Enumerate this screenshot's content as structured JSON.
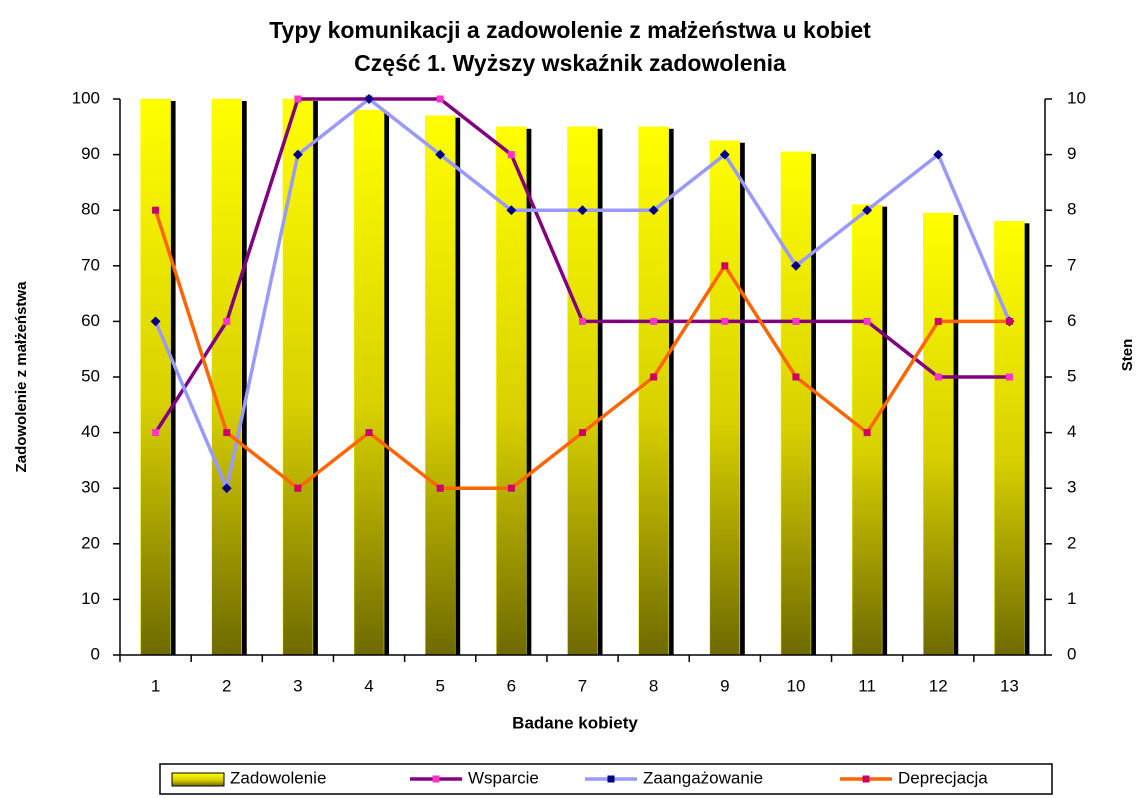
{
  "chart_data": {
    "type": "bar",
    "title": "Typy komunikacji a zadowolenie z małżeństwa u kobiet",
    "subtitle": "Część 1. Wyższy wskaźnik zadowolenia",
    "x_label": "Badane kobiety",
    "y_label": "Zadowolenie z małżeństwa",
    "y2_label": "Sten",
    "categories": [
      "1",
      "2",
      "3",
      "4",
      "5",
      "6",
      "7",
      "8",
      "9",
      "10",
      "11",
      "12",
      "13"
    ],
    "ylim": [
      0,
      100
    ],
    "yticks": [
      0,
      10,
      20,
      30,
      40,
      50,
      60,
      70,
      80,
      90,
      100
    ],
    "y2lim": [
      0,
      10
    ],
    "y2ticks": [
      0,
      1,
      2,
      3,
      4,
      5,
      6,
      7,
      8,
      9,
      10
    ],
    "legend": "bottom",
    "series": [
      {
        "name": "Zadowolenie",
        "type": "bar",
        "color": "#ffff00",
        "values": [
          100,
          100,
          100,
          98,
          97,
          95,
          95,
          95,
          92.5,
          90.5,
          81,
          79.5,
          78
        ]
      },
      {
        "name": "Wsparcie",
        "type": "line",
        "axis": "y2",
        "color": "#800080",
        "marker_color": "#ff33cc",
        "values": [
          4,
          6,
          10,
          10,
          10,
          9,
          6,
          6,
          6,
          6,
          6,
          5,
          5
        ]
      },
      {
        "name": "Zaangażowanie",
        "type": "line",
        "axis": "y2",
        "color": "#9999ff",
        "marker_color": "#000080",
        "values": [
          6,
          3,
          9,
          10,
          9,
          8,
          8,
          8,
          9,
          7,
          8,
          9,
          6
        ]
      },
      {
        "name": "Deprecjacja",
        "type": "line",
        "axis": "y2",
        "color": "#ff6600",
        "marker_color": "#cc0066",
        "values": [
          8,
          4,
          3,
          4,
          3,
          3,
          4,
          5,
          7,
          5,
          4,
          6,
          6
        ]
      }
    ]
  }
}
